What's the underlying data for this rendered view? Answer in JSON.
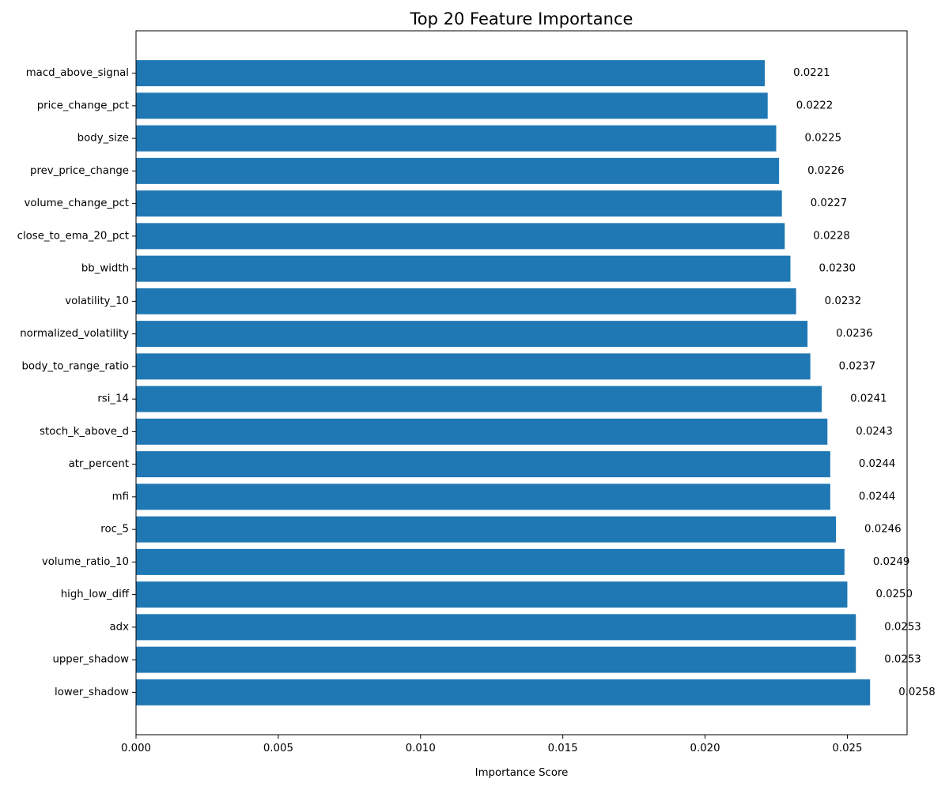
{
  "chart_data": {
    "type": "bar",
    "orientation": "horizontal",
    "title": "Top 20 Feature Importance",
    "xlabel": "Importance Score",
    "ylabel": "",
    "xlim": [
      0,
      0.0271
    ],
    "xticks": [
      0.0,
      0.005,
      0.01,
      0.015,
      0.02,
      0.025
    ],
    "xtick_labels": [
      "0.000",
      "0.005",
      "0.010",
      "0.015",
      "0.020",
      "0.025"
    ],
    "grid": false,
    "bar_color": "#1f77b4",
    "categories": [
      "lower_shadow",
      "upper_shadow",
      "adx",
      "high_low_diff",
      "volume_ratio_10",
      "roc_5",
      "mfi",
      "atr_percent",
      "stoch_k_above_d",
      "rsi_14",
      "body_to_range_ratio",
      "normalized_volatility",
      "volatility_10",
      "bb_width",
      "close_to_ema_20_pct",
      "volume_change_pct",
      "prev_price_change",
      "body_size",
      "price_change_pct",
      "macd_above_signal"
    ],
    "values": [
      0.0258,
      0.0253,
      0.0253,
      0.025,
      0.0249,
      0.0246,
      0.0244,
      0.0244,
      0.0243,
      0.0241,
      0.0237,
      0.0236,
      0.0232,
      0.023,
      0.0228,
      0.0227,
      0.0226,
      0.0225,
      0.0222,
      0.0221
    ],
    "value_labels": [
      "0.0258",
      "0.0253",
      "0.0253",
      "0.0250",
      "0.0249",
      "0.0246",
      "0.0244",
      "0.0244",
      "0.0243",
      "0.0241",
      "0.0237",
      "0.0236",
      "0.0232",
      "0.0230",
      "0.0228",
      "0.0227",
      "0.0226",
      "0.0225",
      "0.0222",
      "0.0221"
    ]
  }
}
